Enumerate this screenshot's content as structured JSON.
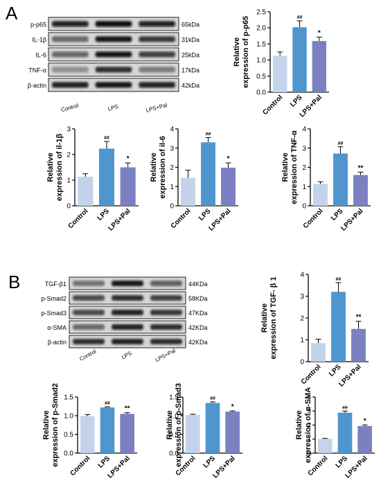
{
  "panels": {
    "a": "A",
    "b": "B"
  },
  "colors": {
    "control": "#c3d4ea",
    "lps": "#4f96cf",
    "lpspal": "#7b80c2"
  },
  "blots": {
    "a": {
      "rows": [
        {
          "label": "p-p65",
          "kda": "65kDa",
          "intensity": [
            0.9,
            1.0,
            0.9
          ]
        },
        {
          "label": "IL-1β",
          "kda": "31kDa",
          "intensity": [
            0.55,
            0.95,
            0.8
          ]
        },
        {
          "label": "IL-6",
          "kda": "25kDa",
          "intensity": [
            0.55,
            0.95,
            0.75
          ]
        },
        {
          "label": "TNF-α",
          "kda": "17kDa",
          "intensity": [
            0.35,
            0.85,
            0.45
          ]
        },
        {
          "label": "β-actin",
          "kda": "42kDa",
          "intensity": [
            0.9,
            0.95,
            0.9
          ]
        }
      ],
      "lanes": [
        "Control",
        "LPS",
        "LPS+Pal"
      ]
    },
    "b": {
      "rows": [
        {
          "label": "TGF-β1",
          "kda": "44KDa",
          "intensity": [
            0.5,
            0.95,
            0.6
          ]
        },
        {
          "label": "p-Smad2",
          "kda": "58KDa",
          "intensity": [
            0.7,
            0.85,
            0.75
          ]
        },
        {
          "label": "p-Smad3",
          "kda": "47KDa",
          "intensity": [
            0.7,
            0.9,
            0.8
          ]
        },
        {
          "label": "α-SMA",
          "kda": "42KDa",
          "intensity": [
            0.55,
            0.9,
            0.85
          ]
        },
        {
          "label": "β-actin",
          "kda": "42KDa",
          "intensity": [
            0.85,
            0.9,
            0.85
          ]
        }
      ],
      "lanes": [
        "Control",
        "LPS",
        "LPS+Pal"
      ]
    }
  },
  "chart_data": [
    {
      "id": "pp65",
      "type": "bar",
      "categories": [
        "Control",
        "LPS",
        "LPS+Pal"
      ],
      "values": [
        1.13,
        2.02,
        1.59
      ],
      "errors": [
        0.12,
        0.2,
        0.12
      ],
      "marks": [
        "",
        "##",
        "*"
      ],
      "ylabel": [
        "Relative",
        "expression of p-p65"
      ],
      "ylim": [
        0,
        2.5
      ],
      "yticks": [
        "0.0",
        "0.5",
        "1.0",
        "1.5",
        "2.0",
        "2.5"
      ]
    },
    {
      "id": "il1b",
      "type": "bar",
      "categories": [
        "Control",
        "LPS",
        "LPS+Pal"
      ],
      "values": [
        1.13,
        2.23,
        1.5
      ],
      "errors": [
        0.12,
        0.28,
        0.17
      ],
      "marks": [
        "",
        "##",
        "*"
      ],
      "ylabel": [
        "Relative",
        "expression of il-1β"
      ],
      "ylim": [
        0,
        3
      ],
      "yticks": [
        "0",
        "1",
        "2",
        "3"
      ]
    },
    {
      "id": "il6",
      "type": "bar",
      "categories": [
        "Control",
        "LPS",
        "LPS+Pal"
      ],
      "values": [
        1.45,
        3.3,
        1.98
      ],
      "errors": [
        0.4,
        0.25,
        0.25
      ],
      "marks": [
        "",
        "##",
        "*"
      ],
      "ylabel": [
        "Relative",
        "expression of il-6"
      ],
      "ylim": [
        0,
        4
      ],
      "yticks": [
        "0",
        "1",
        "2",
        "3",
        "4"
      ]
    },
    {
      "id": "tnfa",
      "type": "bar",
      "categories": [
        "Control",
        "LPS",
        "LPS+Pal"
      ],
      "values": [
        1.13,
        2.72,
        1.6
      ],
      "errors": [
        0.12,
        0.35,
        0.15
      ],
      "marks": [
        "",
        "##",
        "**"
      ],
      "ylabel": [
        "Relative",
        "expression of TNF-α"
      ],
      "ylim": [
        0,
        4
      ],
      "yticks": [
        "0",
        "1",
        "2",
        "3",
        "4"
      ]
    },
    {
      "id": "tgfb1",
      "type": "bar",
      "categories": [
        "Control",
        "LPS",
        "LPS+Pal"
      ],
      "values": [
        0.85,
        3.2,
        1.5
      ],
      "errors": [
        0.18,
        0.42,
        0.35
      ],
      "marks": [
        "",
        "##",
        "**"
      ],
      "ylabel": [
        "Relative",
        "expression of TGF- β 1"
      ],
      "ylim": [
        0,
        4
      ],
      "yticks": [
        "0",
        "1",
        "2",
        "3",
        "4"
      ]
    },
    {
      "id": "psmad2",
      "type": "bar",
      "categories": [
        "Control",
        "LPS",
        "LPS+Pal"
      ],
      "values": [
        0.99,
        1.22,
        1.05
      ],
      "errors": [
        0.04,
        0.02,
        0.03
      ],
      "marks": [
        "",
        "##",
        "**"
      ],
      "ylabel": [
        "Relative",
        "expression of p-Smad2"
      ],
      "ylim": [
        0,
        1.5
      ],
      "yticks": [
        "0.0",
        "0.5",
        "1.0",
        "1.5"
      ]
    },
    {
      "id": "psmad3",
      "type": "bar",
      "categories": [
        "Control",
        "LPS",
        "LPS+Pal"
      ],
      "values": [
        1.02,
        1.34,
        1.11
      ],
      "errors": [
        0.02,
        0.03,
        0.02
      ],
      "marks": [
        "",
        "##",
        "*"
      ],
      "ylabel": [
        "Relative",
        "expression of p-Smad3"
      ],
      "ylim": [
        0,
        1.5
      ],
      "yticks": [
        "0.0",
        "0.5",
        "1.0",
        "1.5"
      ]
    },
    {
      "id": "asma",
      "type": "bar",
      "categories": [
        "Control",
        "LPS",
        "LPS+Pal"
      ],
      "values": [
        1.02,
        2.88,
        1.93
      ],
      "errors": [
        0.03,
        0.12,
        0.08
      ],
      "marks": [
        "",
        "##",
        "*"
      ],
      "ylabel": [
        "Relative",
        "expression of α-SMA"
      ],
      "ylim": [
        0,
        4
      ],
      "yticks": [
        "0",
        "1",
        "2",
        "3",
        "4"
      ]
    }
  ]
}
